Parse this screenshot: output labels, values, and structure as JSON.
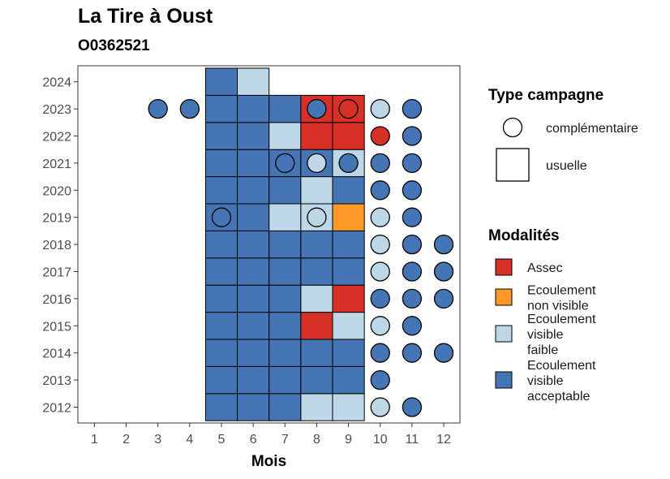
{
  "chart_data": {
    "type": "heatmap",
    "title": "La Tire à Oust",
    "subtitle": "O0362521",
    "xlabel": "Mois",
    "ylabel": "",
    "x_categories": [
      "1",
      "2",
      "3",
      "4",
      "5",
      "6",
      "7",
      "8",
      "9",
      "10",
      "11",
      "12"
    ],
    "y_categories": [
      "2012",
      "2013",
      "2014",
      "2015",
      "2016",
      "2017",
      "2018",
      "2019",
      "2020",
      "2021",
      "2022",
      "2023",
      "2024"
    ],
    "colors": {
      "Assec": "#d73027",
      "Ecoulement non visible": "#fe9929",
      "Ecoulement visible faible": "#bdd7e7",
      "Ecoulement visible acceptable": "#4575b4"
    },
    "legend_type": {
      "title": "Type campagne",
      "items": [
        {
          "key": "complementaire",
          "label": "complémentaire",
          "shape": "circle"
        },
        {
          "key": "usuelle",
          "label": "usuelle",
          "shape": "square"
        }
      ]
    },
    "legend_modalites": {
      "title": "Modalités",
      "items": [
        {
          "key": "Assec",
          "lines": [
            "Assec"
          ]
        },
        {
          "key": "Ecoulement non visible",
          "lines": [
            "Ecoulement",
            "non visible"
          ]
        },
        {
          "key": "Ecoulement visible faible",
          "lines": [
            "Ecoulement",
            "visible",
            "faible"
          ]
        },
        {
          "key": "Ecoulement visible acceptable",
          "lines": [
            "Ecoulement",
            "visible",
            "acceptable"
          ]
        }
      ]
    },
    "usuelle": [
      {
        "year": "2012",
        "month": 5,
        "m": "Ecoulement visible acceptable"
      },
      {
        "year": "2012",
        "month": 6,
        "m": "Ecoulement visible acceptable"
      },
      {
        "year": "2012",
        "month": 7,
        "m": "Ecoulement visible acceptable"
      },
      {
        "year": "2012",
        "month": 8,
        "m": "Ecoulement visible faible"
      },
      {
        "year": "2012",
        "month": 9,
        "m": "Ecoulement visible faible"
      },
      {
        "year": "2013",
        "month": 5,
        "m": "Ecoulement visible acceptable"
      },
      {
        "year": "2013",
        "month": 6,
        "m": "Ecoulement visible acceptable"
      },
      {
        "year": "2013",
        "month": 7,
        "m": "Ecoulement visible acceptable"
      },
      {
        "year": "2013",
        "month": 8,
        "m": "Ecoulement visible acceptable"
      },
      {
        "year": "2013",
        "month": 9,
        "m": "Ecoulement visible acceptable"
      },
      {
        "year": "2014",
        "month": 5,
        "m": "Ecoulement visible acceptable"
      },
      {
        "year": "2014",
        "month": 6,
        "m": "Ecoulement visible acceptable"
      },
      {
        "year": "2014",
        "month": 7,
        "m": "Ecoulement visible acceptable"
      },
      {
        "year": "2014",
        "month": 8,
        "m": "Ecoulement visible acceptable"
      },
      {
        "year": "2014",
        "month": 9,
        "m": "Ecoulement visible acceptable"
      },
      {
        "year": "2015",
        "month": 5,
        "m": "Ecoulement visible acceptable"
      },
      {
        "year": "2015",
        "month": 6,
        "m": "Ecoulement visible acceptable"
      },
      {
        "year": "2015",
        "month": 7,
        "m": "Ecoulement visible acceptable"
      },
      {
        "year": "2015",
        "month": 8,
        "m": "Assec"
      },
      {
        "year": "2015",
        "month": 9,
        "m": "Ecoulement visible faible"
      },
      {
        "year": "2016",
        "month": 5,
        "m": "Ecoulement visible acceptable"
      },
      {
        "year": "2016",
        "month": 6,
        "m": "Ecoulement visible acceptable"
      },
      {
        "year": "2016",
        "month": 7,
        "m": "Ecoulement visible acceptable"
      },
      {
        "year": "2016",
        "month": 8,
        "m": "Ecoulement visible faible"
      },
      {
        "year": "2016",
        "month": 9,
        "m": "Assec"
      },
      {
        "year": "2017",
        "month": 5,
        "m": "Ecoulement visible acceptable"
      },
      {
        "year": "2017",
        "month": 6,
        "m": "Ecoulement visible acceptable"
      },
      {
        "year": "2017",
        "month": 7,
        "m": "Ecoulement visible acceptable"
      },
      {
        "year": "2017",
        "month": 8,
        "m": "Ecoulement visible acceptable"
      },
      {
        "year": "2017",
        "month": 9,
        "m": "Ecoulement visible acceptable"
      },
      {
        "year": "2018",
        "month": 5,
        "m": "Ecoulement visible acceptable"
      },
      {
        "year": "2018",
        "month": 6,
        "m": "Ecoulement visible acceptable"
      },
      {
        "year": "2018",
        "month": 7,
        "m": "Ecoulement visible acceptable"
      },
      {
        "year": "2018",
        "month": 8,
        "m": "Ecoulement visible acceptable"
      },
      {
        "year": "2018",
        "month": 9,
        "m": "Ecoulement visible acceptable"
      },
      {
        "year": "2019",
        "month": 5,
        "m": "Ecoulement visible acceptable"
      },
      {
        "year": "2019",
        "month": 6,
        "m": "Ecoulement visible acceptable"
      },
      {
        "year": "2019",
        "month": 7,
        "m": "Ecoulement visible faible"
      },
      {
        "year": "2019",
        "month": 8,
        "m": "Ecoulement visible faible"
      },
      {
        "year": "2019",
        "month": 9,
        "m": "Ecoulement non visible"
      },
      {
        "year": "2020",
        "month": 5,
        "m": "Ecoulement visible acceptable"
      },
      {
        "year": "2020",
        "month": 6,
        "m": "Ecoulement visible acceptable"
      },
      {
        "year": "2020",
        "month": 7,
        "m": "Ecoulement visible acceptable"
      },
      {
        "year": "2020",
        "month": 8,
        "m": "Ecoulement visible faible"
      },
      {
        "year": "2020",
        "month": 9,
        "m": "Ecoulement visible acceptable"
      },
      {
        "year": "2021",
        "month": 5,
        "m": "Ecoulement visible acceptable"
      },
      {
        "year": "2021",
        "month": 6,
        "m": "Ecoulement visible acceptable"
      },
      {
        "year": "2021",
        "month": 7,
        "m": "Ecoulement visible acceptable"
      },
      {
        "year": "2021",
        "month": 8,
        "m": "Ecoulement visible acceptable"
      },
      {
        "year": "2021",
        "month": 9,
        "m": "Ecoulement visible faible"
      },
      {
        "year": "2022",
        "month": 5,
        "m": "Ecoulement visible acceptable"
      },
      {
        "year": "2022",
        "month": 6,
        "m": "Ecoulement visible acceptable"
      },
      {
        "year": "2022",
        "month": 7,
        "m": "Ecoulement visible faible"
      },
      {
        "year": "2022",
        "month": 8,
        "m": "Assec"
      },
      {
        "year": "2022",
        "month": 9,
        "m": "Assec"
      },
      {
        "year": "2023",
        "month": 5,
        "m": "Ecoulement visible acceptable"
      },
      {
        "year": "2023",
        "month": 6,
        "m": "Ecoulement visible acceptable"
      },
      {
        "year": "2023",
        "month": 7,
        "m": "Ecoulement visible acceptable"
      },
      {
        "year": "2023",
        "month": 8,
        "m": "Assec"
      },
      {
        "year": "2023",
        "month": 9,
        "m": "Assec"
      },
      {
        "year": "2024",
        "month": 5,
        "m": "Ecoulement visible acceptable"
      },
      {
        "year": "2024",
        "month": 6,
        "m": "Ecoulement visible faible"
      }
    ],
    "complementaire": [
      {
        "year": "2012",
        "month": 10,
        "m": "Ecoulement visible faible"
      },
      {
        "year": "2012",
        "month": 11,
        "m": "Ecoulement visible acceptable"
      },
      {
        "year": "2013",
        "month": 10,
        "m": "Ecoulement visible acceptable"
      },
      {
        "year": "2014",
        "month": 10,
        "m": "Ecoulement visible acceptable"
      },
      {
        "year": "2014",
        "month": 11,
        "m": "Ecoulement visible acceptable"
      },
      {
        "year": "2014",
        "month": 12,
        "m": "Ecoulement visible acceptable"
      },
      {
        "year": "2015",
        "month": 10,
        "m": "Ecoulement visible faible"
      },
      {
        "year": "2015",
        "month": 11,
        "m": "Ecoulement visible acceptable"
      },
      {
        "year": "2016",
        "month": 10,
        "m": "Ecoulement visible acceptable"
      },
      {
        "year": "2016",
        "month": 11,
        "m": "Ecoulement visible acceptable"
      },
      {
        "year": "2016",
        "month": 12,
        "m": "Ecoulement visible acceptable"
      },
      {
        "year": "2017",
        "month": 10,
        "m": "Ecoulement visible faible"
      },
      {
        "year": "2017",
        "month": 11,
        "m": "Ecoulement visible acceptable"
      },
      {
        "year": "2017",
        "month": 12,
        "m": "Ecoulement visible acceptable"
      },
      {
        "year": "2018",
        "month": 10,
        "m": "Ecoulement visible faible"
      },
      {
        "year": "2018",
        "month": 11,
        "m": "Ecoulement visible acceptable"
      },
      {
        "year": "2018",
        "month": 12,
        "m": "Ecoulement visible acceptable"
      },
      {
        "year": "2019",
        "month": 5,
        "m": "Ecoulement visible acceptable"
      },
      {
        "year": "2019",
        "month": 8,
        "m": "Ecoulement visible faible"
      },
      {
        "year": "2019",
        "month": 10,
        "m": "Ecoulement visible faible"
      },
      {
        "year": "2019",
        "month": 11,
        "m": "Ecoulement visible acceptable"
      },
      {
        "year": "2020",
        "month": 10,
        "m": "Ecoulement visible acceptable"
      },
      {
        "year": "2020",
        "month": 11,
        "m": "Ecoulement visible acceptable"
      },
      {
        "year": "2021",
        "month": 7,
        "m": "Ecoulement visible acceptable"
      },
      {
        "year": "2021",
        "month": 8,
        "m": "Ecoulement visible faible"
      },
      {
        "year": "2021",
        "month": 9,
        "m": "Ecoulement visible acceptable"
      },
      {
        "year": "2021",
        "month": 10,
        "m": "Ecoulement visible acceptable"
      },
      {
        "year": "2021",
        "month": 11,
        "m": "Ecoulement visible acceptable"
      },
      {
        "year": "2022",
        "month": 10,
        "m": "Assec"
      },
      {
        "year": "2022",
        "month": 11,
        "m": "Ecoulement visible acceptable"
      },
      {
        "year": "2023",
        "month": 3,
        "m": "Ecoulement visible acceptable"
      },
      {
        "year": "2023",
        "month": 4,
        "m": "Ecoulement visible acceptable"
      },
      {
        "year": "2023",
        "month": 8,
        "m": "Ecoulement visible acceptable"
      },
      {
        "year": "2023",
        "month": 9,
        "m": "Assec"
      },
      {
        "year": "2023",
        "month": 10,
        "m": "Ecoulement visible faible"
      },
      {
        "year": "2023",
        "month": 11,
        "m": "Ecoulement visible acceptable"
      }
    ]
  }
}
